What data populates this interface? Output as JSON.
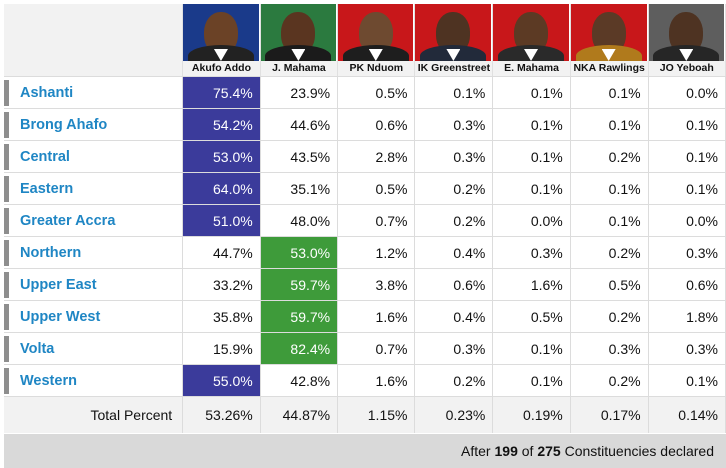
{
  "colors": {
    "winner_blue": "#3b3b9b",
    "winner_green": "#3e9b3a",
    "region_text": "#1f86c4"
  },
  "candidates": [
    {
      "name": "Akufo Addo",
      "bg": "#1a3a8a",
      "head": "#6b4226",
      "suit": "#222222"
    },
    {
      "name": "J. Mahama",
      "bg": "#2b7a3f",
      "head": "#5a3520",
      "suit": "#1b1b1b"
    },
    {
      "name": "PK Nduom",
      "bg": "#c8171a",
      "head": "#6e4a30",
      "suit": "#1e1e1e"
    },
    {
      "name": "IK Greenstreet",
      "bg": "#c8171a",
      "head": "#4e3322",
      "suit": "#222a3a"
    },
    {
      "name": "E. Mahama",
      "bg": "#c8171a",
      "head": "#5c3a24",
      "suit": "#2a2a2a"
    },
    {
      "name": "NKA Rawlings",
      "bg": "#c8171a",
      "head": "#5b3a26",
      "suit": "#b07a1c"
    },
    {
      "name": "JO Yeboah",
      "bg": "#5e5e5e",
      "head": "#4e3322",
      "suit": "#262626"
    }
  ],
  "rows": [
    {
      "region": "Ashanti",
      "values": [
        "75.4%",
        "23.9%",
        "0.5%",
        "0.1%",
        "0.1%",
        "0.1%",
        "0.0%"
      ],
      "winner": 0
    },
    {
      "region": "Brong Ahafo",
      "values": [
        "54.2%",
        "44.6%",
        "0.6%",
        "0.3%",
        "0.1%",
        "0.1%",
        "0.1%"
      ],
      "winner": 0
    },
    {
      "region": "Central",
      "values": [
        "53.0%",
        "43.5%",
        "2.8%",
        "0.3%",
        "0.1%",
        "0.2%",
        "0.1%"
      ],
      "winner": 0
    },
    {
      "region": "Eastern",
      "values": [
        "64.0%",
        "35.1%",
        "0.5%",
        "0.2%",
        "0.1%",
        "0.1%",
        "0.1%"
      ],
      "winner": 0
    },
    {
      "region": "Greater Accra",
      "values": [
        "51.0%",
        "48.0%",
        "0.7%",
        "0.2%",
        "0.0%",
        "0.1%",
        "0.0%"
      ],
      "winner": 0
    },
    {
      "region": "Northern",
      "values": [
        "44.7%",
        "53.0%",
        "1.2%",
        "0.4%",
        "0.3%",
        "0.2%",
        "0.3%"
      ],
      "winner": 1
    },
    {
      "region": "Upper East",
      "values": [
        "33.2%",
        "59.7%",
        "3.8%",
        "0.6%",
        "1.6%",
        "0.5%",
        "0.6%"
      ],
      "winner": 1
    },
    {
      "region": "Upper West",
      "values": [
        "35.8%",
        "59.7%",
        "1.6%",
        "0.4%",
        "0.5%",
        "0.2%",
        "1.8%"
      ],
      "winner": 1
    },
    {
      "region": "Volta",
      "values": [
        "15.9%",
        "82.4%",
        "0.7%",
        "0.3%",
        "0.1%",
        "0.3%",
        "0.3%"
      ],
      "winner": 1
    },
    {
      "region": "Western",
      "values": [
        "55.0%",
        "42.8%",
        "1.6%",
        "0.2%",
        "0.1%",
        "0.2%",
        "0.1%"
      ],
      "winner": 0
    }
  ],
  "totals": {
    "label": "Total Percent",
    "values": [
      "53.26%",
      "44.87%",
      "1.15%",
      "0.23%",
      "0.19%",
      "0.17%",
      "0.14%"
    ]
  },
  "footer": {
    "prefix": "After ",
    "declared": "199",
    "middle": " of ",
    "total": "275",
    "suffix": " Constituencies declared"
  }
}
